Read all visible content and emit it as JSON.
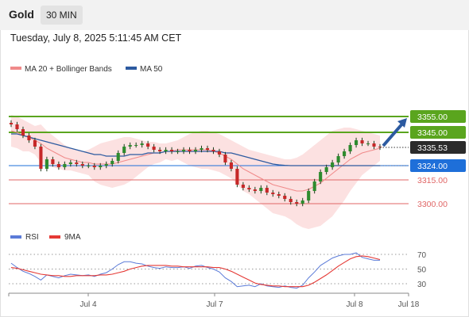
{
  "header": {
    "symbol": "Gold",
    "timeframe": "30 MIN"
  },
  "datetime": "Tuesday, July 8, 2025 5:11:45 AM CET",
  "chart_data": [
    {
      "type": "candlestick",
      "legend": [
        {
          "label": "MA 20 + Bollinger Bands",
          "color": "#f08a8a"
        },
        {
          "label": "MA 50",
          "color": "#2c5aa0"
        }
      ],
      "ylim": [
        3290,
        3360
      ],
      "x_ticks": [
        "Jul 4",
        "Jul 7",
        "Jul 8",
        "Jul 18"
      ],
      "levels": [
        {
          "value": 3355.0,
          "label": "3355.00",
          "kind": "resistance",
          "color": "#5aa51e"
        },
        {
          "value": 3345.0,
          "label": "3345.00",
          "kind": "resistance",
          "color": "#5aa51e"
        },
        {
          "value": 3335.53,
          "label": "3335.53",
          "kind": "current",
          "color": "#222222"
        },
        {
          "value": 3324.0,
          "label": "3324.00",
          "kind": "support-ma",
          "color": "#1e6fd9"
        },
        {
          "value": 3315.0,
          "label": "3315.00",
          "kind": "support",
          "color": "#e06666"
        },
        {
          "value": 3300.0,
          "label": "3300.00",
          "kind": "support",
          "color": "#e06666"
        }
      ],
      "close": [
        3350,
        3347,
        3343,
        3340,
        3336,
        3322,
        3328,
        3325,
        3323,
        3325,
        3326,
        3325,
        3324,
        3324,
        3323,
        3324,
        3325,
        3327,
        3332,
        3336,
        3337,
        3337,
        3338,
        3336,
        3334,
        3333,
        3334,
        3333,
        3333,
        3334,
        3333,
        3334,
        3335,
        3334,
        3333,
        3331,
        3326,
        3322,
        3312,
        3310,
        3309,
        3308,
        3310,
        3307,
        3306,
        3305,
        3303,
        3301,
        3300,
        3302,
        3308,
        3314,
        3320,
        3323,
        3326,
        3330,
        3333,
        3337,
        3340,
        3338,
        3338,
        3336,
        3335.53
      ],
      "ma20": [
        3346,
        3345,
        3343,
        3342,
        3340,
        3338,
        3335,
        3333,
        3331,
        3329,
        3328,
        3327,
        3326,
        3326,
        3325,
        3325,
        3325,
        3325,
        3326,
        3327,
        3328,
        3329,
        3330,
        3331,
        3332,
        3332,
        3333,
        3333,
        3334,
        3334,
        3334,
        3334,
        3334,
        3334,
        3333,
        3332,
        3330,
        3328,
        3325,
        3322,
        3320,
        3318,
        3316,
        3314,
        3312,
        3311,
        3310,
        3309,
        3308,
        3308,
        3309,
        3311,
        3313,
        3316,
        3319,
        3322,
        3325,
        3328,
        3330,
        3332,
        3333,
        3334,
        3335
      ],
      "ma50": [
        3344,
        3344,
        3343,
        3342,
        3341,
        3340,
        3339,
        3338,
        3337,
        3336,
        3335,
        3334,
        3333,
        3332,
        3331,
        3331,
        3330,
        3330,
        3330,
        3330,
        3331,
        3331,
        3331,
        3332,
        3332,
        3332,
        3333,
        3333,
        3333,
        3333,
        3333,
        3333,
        3333,
        3333,
        3333,
        3333,
        3332,
        3332,
        3331,
        3330,
        3329,
        3328,
        3327,
        3326,
        3325,
        3324.5,
        3324.2,
        3324,
        3324,
        3324,
        3324,
        3324,
        3324,
        3324,
        3324,
        3324,
        3324,
        3324,
        3324,
        3324,
        3324,
        3324,
        3324
      ],
      "bb_upper": [
        3356,
        3355,
        3353,
        3351,
        3349,
        3350,
        3346,
        3343,
        3340,
        3337,
        3335,
        3334,
        3333,
        3334,
        3336,
        3338,
        3339,
        3340,
        3341,
        3342,
        3342,
        3341,
        3340,
        3339,
        3339,
        3338,
        3338,
        3339,
        3340,
        3342,
        3344,
        3345,
        3346,
        3346,
        3345,
        3344,
        3342,
        3340,
        3338,
        3336,
        3334,
        3333,
        3332,
        3331,
        3330,
        3329,
        3328,
        3328,
        3329,
        3331,
        3334,
        3337,
        3340,
        3343,
        3346,
        3347,
        3348,
        3348,
        3347,
        3346,
        3345,
        3344,
        3343
      ]
    },
    {
      "type": "line",
      "title": "RSI",
      "legend": [
        {
          "label": "RSI",
          "color": "#5b7bd8"
        },
        {
          "label": "9MA",
          "color": "#e53935"
        }
      ],
      "ylim": [
        20,
        80
      ],
      "y_ticks": [
        70,
        50,
        30
      ],
      "rsi": [
        58,
        52,
        47,
        44,
        40,
        35,
        42,
        40,
        38,
        41,
        43,
        42,
        41,
        42,
        40,
        43,
        45,
        50,
        56,
        60,
        60,
        58,
        57,
        54,
        52,
        51,
        53,
        52,
        52,
        53,
        51,
        54,
        55,
        52,
        50,
        46,
        38,
        33,
        26,
        27,
        28,
        26,
        30,
        27,
        26,
        25,
        27,
        25,
        24,
        28,
        38,
        46,
        55,
        60,
        65,
        68,
        70,
        70,
        72,
        66,
        64,
        62,
        62
      ],
      "ma9": [
        52,
        51,
        49,
        47,
        45,
        43,
        42,
        41,
        41,
        40,
        40,
        41,
        41,
        41,
        41,
        42,
        42,
        43,
        45,
        47,
        50,
        52,
        54,
        55,
        55,
        55,
        55,
        54,
        54,
        53,
        53,
        53,
        53,
        53,
        52,
        52,
        50,
        47,
        43,
        39,
        35,
        31,
        29,
        28,
        27,
        27,
        26,
        26,
        26,
        26,
        28,
        32,
        37,
        42,
        48,
        54,
        59,
        64,
        67,
        68,
        67,
        65,
        63
      ]
    }
  ]
}
